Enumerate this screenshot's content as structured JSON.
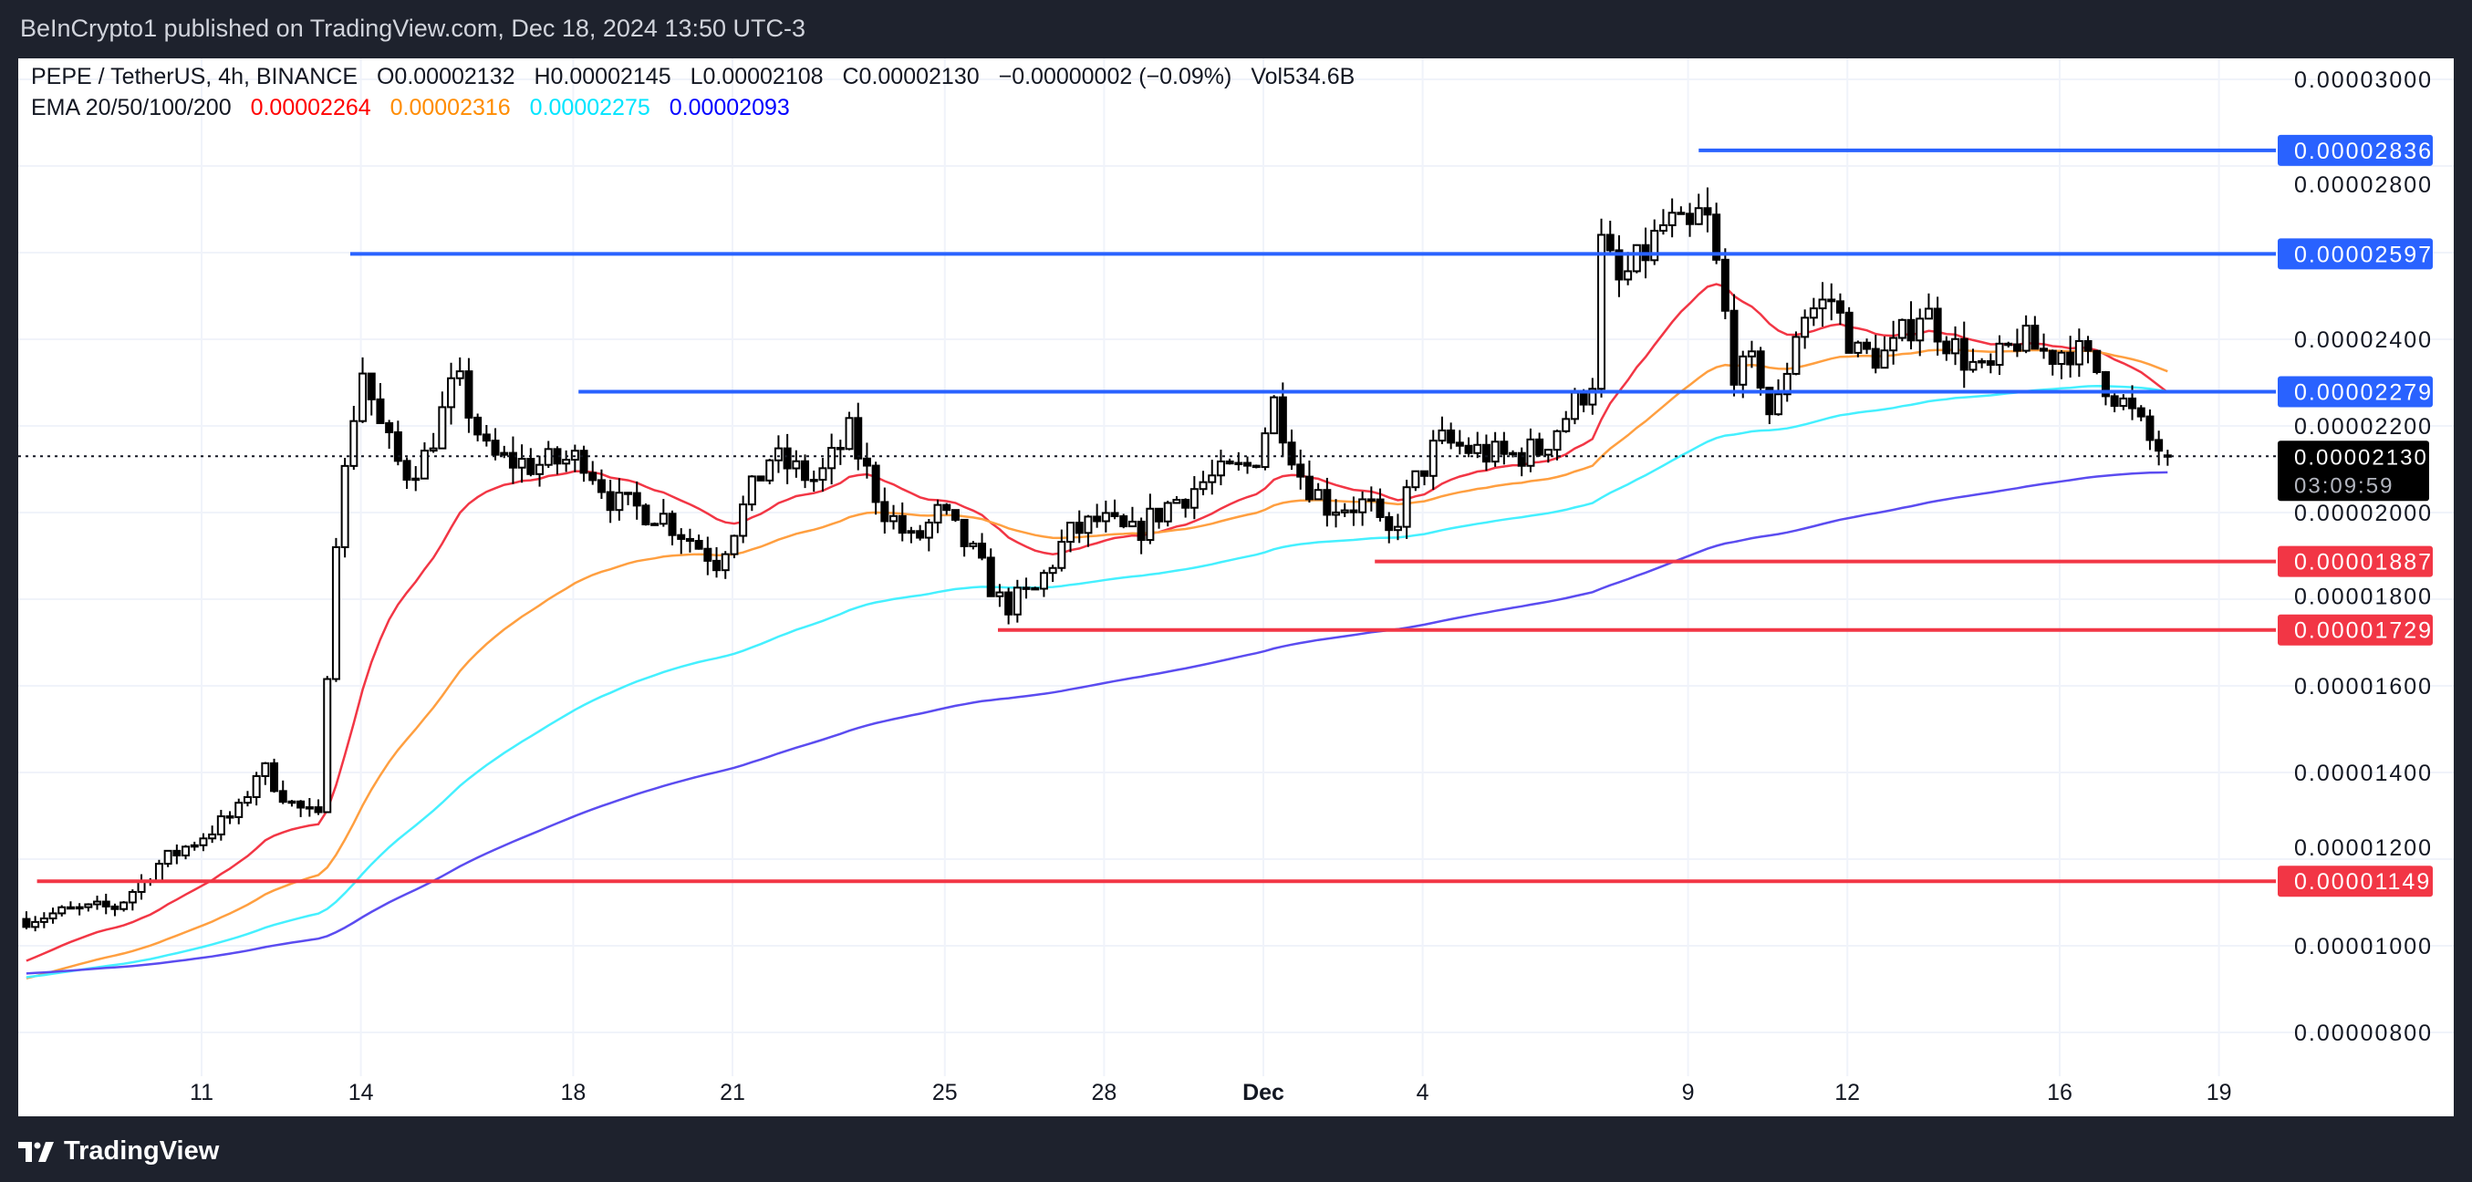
{
  "header": {
    "published": "BeInCrypto1 published on TradingView.com, Dec 18, 2024 13:50 UTC-3"
  },
  "legend": {
    "symbol": "PEPE / TetherUS, 4h, BINANCE",
    "open": "O0.00002132",
    "high": "H0.00002145",
    "low": "L0.00002108",
    "close": "C0.00002130",
    "change": "−0.00000002 (−0.09%)",
    "volume": "Vol534.6B",
    "ema_label": "EMA 20/50/100/200",
    "ema_values": [
      {
        "value": "0.00002264",
        "color": "#ff0000"
      },
      {
        "value": "0.00002316",
        "color": "#ff8c00"
      },
      {
        "value": "0.00002275",
        "color": "#00ffff"
      },
      {
        "value": "0.00002093",
        "color": "#0000ff"
      }
    ]
  },
  "footer": {
    "brand": "TradingView",
    "logo_icon": "tradingview-logo-icon"
  },
  "chart_data": {
    "type": "candlestick",
    "unit": "1e-8 USDT",
    "timeframe": "4h",
    "x_ticks": [
      {
        "label": "11",
        "day": 11
      },
      {
        "label": "14",
        "day": 14
      },
      {
        "label": "18",
        "day": 18
      },
      {
        "label": "21",
        "day": 21
      },
      {
        "label": "25",
        "day": 25
      },
      {
        "label": "28",
        "day": 28
      },
      {
        "label": "Dec",
        "day": 31
      },
      {
        "label": "4",
        "day": 34
      },
      {
        "label": "9",
        "day": 39
      },
      {
        "label": "12",
        "day": 42
      },
      {
        "label": "16",
        "day": 46
      },
      {
        "label": "19",
        "day": 49
      }
    ],
    "y_ticks": [
      {
        "label": "0.00003000",
        "value": 3000
      },
      {
        "label": "0.00002800",
        "value": 2800
      },
      {
        "label": "0.00002400",
        "value": 2400
      },
      {
        "label": "0.00002200",
        "value": 2200
      },
      {
        "label": "0.00002000",
        "value": 2000
      },
      {
        "label": "0.00001800",
        "value": 1800
      },
      {
        "label": "0.00001600",
        "value": 1600
      },
      {
        "label": "0.00001400",
        "value": 1400
      },
      {
        "label": "0.00001200",
        "value": 1200
      },
      {
        "label": "0.00001000",
        "value": 1000
      },
      {
        "label": "0.00000800",
        "value": 800
      }
    ],
    "grid_values": [
      800,
      1000,
      1200,
      1400,
      1600,
      1800,
      2000,
      2200,
      2400,
      2600,
      2800,
      3000
    ],
    "ylim": [
      640,
      3080
    ],
    "close_keypoints": [
      [
        7.7,
        1062
      ],
      [
        8.5,
        1080
      ],
      [
        9.4,
        1090
      ],
      [
        10.2,
        1189
      ],
      [
        10.8,
        1236
      ],
      [
        11.7,
        1310
      ],
      [
        12.1,
        1418
      ],
      [
        12.7,
        1327
      ],
      [
        13.2,
        1290
      ],
      [
        13.5,
        1927
      ],
      [
        13.7,
        2090
      ],
      [
        14.0,
        2345
      ],
      [
        14.35,
        2200
      ],
      [
        14.8,
        2090
      ],
      [
        15.2,
        2127
      ],
      [
        15.8,
        2310
      ],
      [
        16.4,
        2127
      ],
      [
        17.3,
        2109
      ],
      [
        18.2,
        2127
      ],
      [
        18.8,
        2018
      ],
      [
        19.6,
        2000
      ],
      [
        20.7,
        1890
      ],
      [
        21.7,
        2127
      ],
      [
        22.6,
        2072
      ],
      [
        23.2,
        2182
      ],
      [
        23.8,
        2018
      ],
      [
        24.4,
        1927
      ],
      [
        24.9,
        2000
      ],
      [
        25.5,
        1909
      ],
      [
        26.1,
        1782
      ],
      [
        26.7,
        1818
      ],
      [
        27.3,
        1945
      ],
      [
        27.9,
        1982
      ],
      [
        28.5,
        1945
      ],
      [
        29.2,
        2018
      ],
      [
        29.9,
        2072
      ],
      [
        30.8,
        2109
      ],
      [
        31.2,
        2255
      ],
      [
        31.7,
        2090
      ],
      [
        32.2,
        2018
      ],
      [
        33.0,
        2018
      ],
      [
        33.3,
        1927
      ],
      [
        33.7,
        2036
      ],
      [
        34.3,
        2164
      ],
      [
        34.9,
        2145
      ],
      [
        35.5,
        2127
      ],
      [
        36.2,
        2145
      ],
      [
        36.9,
        2255
      ],
      [
        37.2,
        2310
      ],
      [
        37.3,
        2636
      ],
      [
        37.7,
        2527
      ],
      [
        38.1,
        2582
      ],
      [
        38.6,
        2672
      ],
      [
        39.0,
        2636
      ],
      [
        39.3,
        2709
      ],
      [
        39.6,
        2527
      ],
      [
        39.9,
        2310
      ],
      [
        40.3,
        2345
      ],
      [
        40.6,
        2200
      ],
      [
        41.1,
        2455
      ],
      [
        41.7,
        2491
      ],
      [
        42.2,
        2364
      ],
      [
        42.8,
        2364
      ],
      [
        43.4,
        2473
      ],
      [
        44.0,
        2382
      ],
      [
        44.6,
        2310
      ],
      [
        45.2,
        2400
      ],
      [
        45.8,
        2364
      ],
      [
        46.2,
        2382
      ],
      [
        46.7,
        2327
      ],
      [
        47.3,
        2236
      ],
      [
        47.7,
        2164
      ],
      [
        48.1,
        2130
      ]
    ],
    "last_candle": {
      "open": 2132,
      "high": 2145,
      "low": 2108,
      "close": 2130
    },
    "ema": [
      {
        "period": 20,
        "color": "#f23645",
        "seed": 957
      },
      {
        "period": 50,
        "color": "#ff9f40",
        "seed": 920
      },
      {
        "period": 100,
        "color": "#45f0ff",
        "seed": 925
      },
      {
        "period": 200,
        "color": "#5b4cf0",
        "seed": 935
      }
    ],
    "levels": [
      {
        "label": "0.00002836",
        "value": 2836,
        "from_day": 39.2,
        "color": "#2962ff"
      },
      {
        "label": "0.00002597",
        "value": 2597,
        "from_day": 13.8,
        "color": "#2962ff"
      },
      {
        "label": "0.00002279",
        "value": 2279,
        "from_day": 18.1,
        "color": "#2962ff"
      },
      {
        "label": "0.00001887",
        "value": 1887,
        "from_day": 33.1,
        "color": "#f23645"
      },
      {
        "label": "0.00001729",
        "value": 1729,
        "from_day": 26.0,
        "color": "#f23645"
      },
      {
        "label": "0.00001149",
        "value": 1149,
        "from_day": 7.9,
        "color": "#f23645"
      }
    ],
    "current_price": {
      "label": "0.00002130",
      "value": 2130,
      "countdown": "03:09:59"
    }
  }
}
